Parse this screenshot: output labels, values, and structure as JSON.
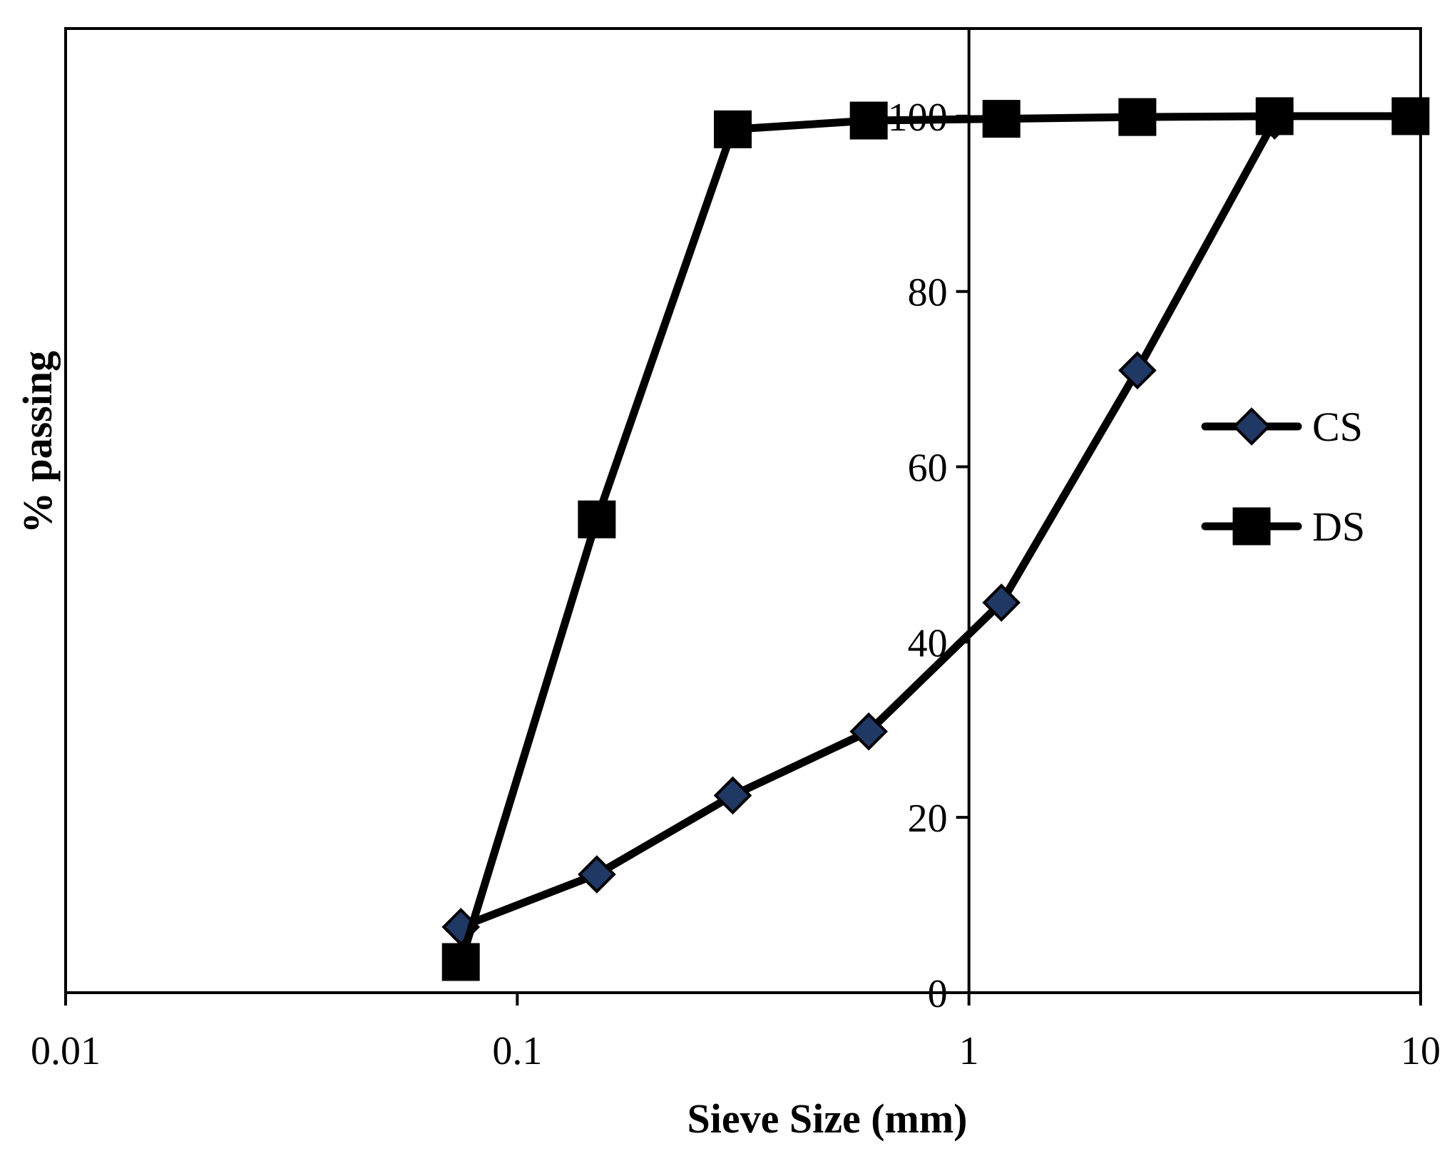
{
  "chart_data": {
    "type": "line",
    "title": "",
    "xlabel": "Sieve Size (mm)",
    "ylabel": "% passing",
    "xscale": "log",
    "xlim": [
      0.01,
      10
    ],
    "ylim": [
      0,
      110
    ],
    "x_ticks": [
      0.01,
      0.1,
      1,
      10
    ],
    "x_tick_labels": [
      "0.01",
      "0.1",
      "1",
      "10"
    ],
    "y_ticks": [
      0,
      20,
      40,
      60,
      80,
      100
    ],
    "y_tick_labels": [
      "0",
      "20",
      "40",
      "60",
      "80",
      "100"
    ],
    "y_axis_at_x": 1,
    "grid": false,
    "legend_position": "right",
    "series": [
      {
        "name": "CS",
        "marker": "diamond",
        "marker_color": "#1f3864",
        "line_color": "#000000",
        "x": [
          0.075,
          0.15,
          0.3,
          0.6,
          1.18,
          2.36,
          4.75
        ],
        "values": [
          7.5,
          13.5,
          22.5,
          29.8,
          44.5,
          71.0,
          99.5
        ]
      },
      {
        "name": "DS",
        "marker": "square",
        "marker_color": "#000000",
        "line_color": "#000000",
        "x": [
          0.075,
          0.15,
          0.3,
          0.6,
          1.18,
          2.36,
          4.75,
          9.5
        ],
        "values": [
          3.5,
          54.0,
          98.5,
          99.5,
          99.7,
          99.9,
          100.0,
          100.0
        ]
      }
    ]
  }
}
